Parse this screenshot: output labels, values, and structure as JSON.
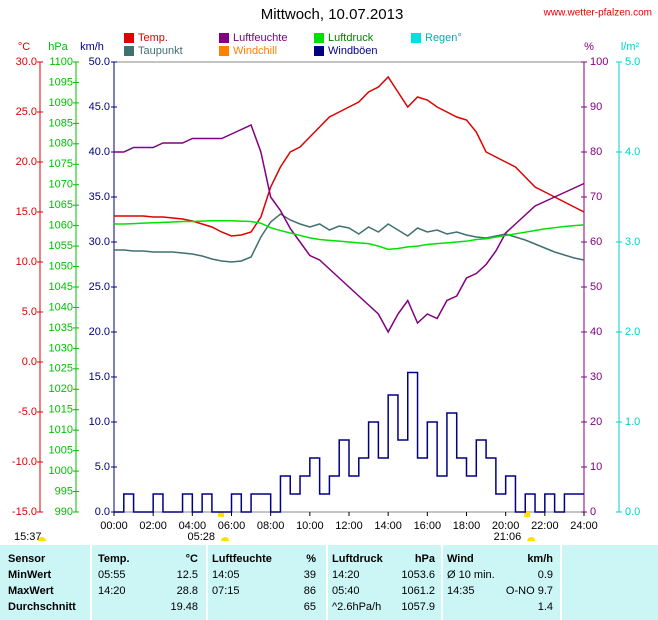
{
  "chart_data": {
    "type": "line",
    "title": "Mittwoch, 10.07.2013",
    "source": "www.wetter-pfalzen.com",
    "axes": {
      "temp": {
        "unit": "°C",
        "color": "#e00000",
        "lim": [
          -15,
          30
        ],
        "ticks": [
          {
            "value": 30,
            "label": "30.0"
          },
          {
            "value": 25,
            "label": "25.0"
          },
          {
            "value": 20,
            "label": "20.0"
          },
          {
            "value": 15,
            "label": "15.0"
          },
          {
            "value": 10,
            "label": "10.0"
          },
          {
            "value": 5,
            "label": "5.0"
          },
          {
            "value": 0,
            "label": "0.0"
          },
          {
            "value": -5,
            "label": "-5.0"
          },
          {
            "value": -10,
            "label": "-10.0"
          },
          {
            "value": -15,
            "label": "-15.0"
          }
        ]
      },
      "press": {
        "unit": "hPa",
        "color": "#00c000",
        "lim": [
          990,
          1100
        ],
        "ticks": [
          1100,
          1095,
          1090,
          1085,
          1080,
          1075,
          1070,
          1065,
          1060,
          1055,
          1050,
          1045,
          1040,
          1035,
          1030,
          1025,
          1020,
          1015,
          1010,
          1005,
          1000,
          995,
          990
        ]
      },
      "wind": {
        "unit": "km/h",
        "color": "#000080",
        "lim": [
          0,
          50
        ],
        "ticks": [
          {
            "value": 50,
            "label": "50.0"
          },
          {
            "value": 45,
            "label": "45.0"
          },
          {
            "value": 40,
            "label": "40.0"
          },
          {
            "value": 35,
            "label": "35.0"
          },
          {
            "value": 30,
            "label": "30.0"
          },
          {
            "value": 25,
            "label": "25.0"
          },
          {
            "value": 20,
            "label": "20.0"
          },
          {
            "value": 15,
            "label": "15.0"
          },
          {
            "value": 10,
            "label": "10.0"
          },
          {
            "value": 5,
            "label": "5.0"
          },
          {
            "value": 0,
            "label": "0.0"
          }
        ]
      },
      "hum": {
        "unit": "%",
        "color": "#800080",
        "lim": [
          0,
          100
        ],
        "ticks": [
          100,
          90,
          80,
          70,
          60,
          50,
          40,
          30,
          20,
          10,
          0
        ]
      },
      "rain": {
        "unit": "l/m²",
        "color": "#00d0d0",
        "lim": [
          0,
          5
        ],
        "ticks": [
          {
            "value": 5,
            "label": "5.0"
          },
          {
            "value": 4,
            "label": "4.0"
          },
          {
            "value": 3,
            "label": "3.0"
          },
          {
            "value": 2,
            "label": "2.0"
          },
          {
            "value": 1,
            "label": "1.0"
          },
          {
            "value": 0,
            "label": "0.0"
          }
        ]
      }
    },
    "xlim": [
      0,
      24
    ],
    "xticks": [
      {
        "value": 0,
        "label": "00:00"
      },
      {
        "value": 2,
        "label": "02:00"
      },
      {
        "value": 4,
        "label": "04:00"
      },
      {
        "value": 6,
        "label": "06:00"
      },
      {
        "value": 8,
        "label": "08:00"
      },
      {
        "value": 10,
        "label": "10:00"
      },
      {
        "value": 12,
        "label": "12:00"
      },
      {
        "value": 14,
        "label": "14:00"
      },
      {
        "value": 16,
        "label": "16:00"
      },
      {
        "value": 18,
        "label": "18:00"
      },
      {
        "value": 20,
        "label": "20:00"
      },
      {
        "value": 22,
        "label": "22:00"
      },
      {
        "value": 24,
        "label": "24:00"
      }
    ],
    "day_length": "15:37",
    "sun_markers": [
      {
        "value": 5.4667,
        "label": "05:28"
      },
      {
        "value": 21.1,
        "label": "21:06"
      }
    ],
    "x": [
      0,
      0.5,
      1,
      1.5,
      2,
      2.5,
      3,
      3.5,
      4,
      4.5,
      5,
      5.5,
      6,
      6.5,
      7,
      7.5,
      8,
      8.5,
      9,
      9.5,
      10,
      10.5,
      11,
      11.5,
      12,
      12.5,
      13,
      13.5,
      14,
      14.5,
      15,
      15.5,
      16,
      16.5,
      17,
      17.5,
      18,
      18.5,
      19,
      19.5,
      20,
      20.5,
      21,
      21.5,
      22,
      22.5,
      23,
      23.5,
      24
    ],
    "series": [
      {
        "name": "Temp.",
        "color": "#e00000",
        "axis": "temp",
        "values": [
          14.6,
          14.6,
          14.6,
          14.6,
          14.5,
          14.5,
          14.4,
          14.3,
          14.1,
          13.8,
          13.5,
          13.0,
          12.6,
          12.7,
          13.0,
          14.5,
          17.5,
          19.5,
          21.0,
          21.5,
          22.5,
          23.5,
          24.5,
          25.0,
          25.5,
          26.0,
          27.0,
          27.5,
          28.5,
          27.0,
          25.5,
          26.5,
          26.2,
          25.5,
          25.0,
          24.5,
          24.2,
          23.0,
          21.0,
          20.5,
          20.0,
          19.5,
          18.5,
          17.5,
          17.0,
          16.5,
          16.0,
          15.5,
          15.0
        ]
      },
      {
        "name": "Taupunkt",
        "color": "#407070",
        "axis": "temp",
        "values": [
          11.2,
          11.2,
          11.1,
          11.1,
          11.0,
          11.0,
          11.0,
          10.9,
          10.8,
          10.6,
          10.3,
          10.1,
          10.0,
          10.1,
          10.5,
          12.5,
          14.0,
          14.8,
          14.2,
          13.8,
          13.5,
          13.8,
          13.2,
          13.6,
          13.4,
          12.8,
          13.5,
          13.0,
          13.8,
          13.2,
          12.6,
          13.4,
          13.0,
          13.2,
          12.8,
          13.0,
          12.7,
          12.5,
          12.4,
          12.6,
          12.8,
          12.5,
          12.2,
          11.8,
          11.4,
          11.0,
          10.7,
          10.4,
          10.2
        ]
      },
      {
        "name": "Luftfeuchte",
        "color": "#800080",
        "axis": "hum",
        "values": [
          80,
          80,
          81,
          81,
          81,
          82,
          82,
          82,
          83,
          83,
          83,
          83,
          84,
          85,
          86,
          80,
          70,
          67,
          63,
          60,
          57,
          56,
          54,
          52,
          50,
          48,
          46,
          44,
          40,
          44,
          47,
          42,
          44,
          43,
          47,
          48,
          52,
          53,
          55,
          58,
          62,
          64,
          66,
          68,
          69,
          70,
          71,
          72,
          73
        ]
      },
      {
        "name": "Windchill",
        "color": "#ff8000",
        "axis": "temp"
      },
      {
        "name": "Luftdruck",
        "color": "#00e000",
        "axis": "press",
        "values": [
          1060.4,
          1060.4,
          1060.5,
          1060.6,
          1060.7,
          1060.8,
          1060.9,
          1061.0,
          1061.0,
          1061.1,
          1061.2,
          1061.2,
          1061.2,
          1061.1,
          1061.0,
          1060.6,
          1059.5,
          1058.8,
          1058.2,
          1057.6,
          1057.0,
          1056.6,
          1056.4,
          1056.2,
          1056.0,
          1055.8,
          1055.6,
          1055.0,
          1054.2,
          1054.4,
          1054.8,
          1055.0,
          1055.4,
          1055.6,
          1055.8,
          1056.0,
          1056.2,
          1056.6,
          1056.8,
          1057.2,
          1057.6,
          1058.0,
          1058.4,
          1058.8,
          1059.2,
          1059.5,
          1059.8,
          1060.0,
          1060.2
        ]
      },
      {
        "name": "Windböen",
        "color": "#000080",
        "axis": "wind",
        "step": true,
        "values": [
          0,
          2,
          0,
          0,
          2,
          0,
          0,
          2,
          0,
          2,
          0,
          0,
          2,
          0,
          2,
          2,
          0,
          4,
          2,
          4,
          6,
          2,
          4,
          8,
          4,
          6,
          10,
          6,
          13,
          8,
          15.5,
          6,
          10,
          4,
          11,
          6,
          4,
          8,
          6,
          2,
          4,
          0,
          2,
          0,
          2,
          0,
          2,
          2,
          2
        ]
      },
      {
        "name": "Regen°",
        "color": "#00e0e0",
        "axis": "rain"
      }
    ]
  },
  "table": {
    "header": [
      "Sensor",
      "Temp.",
      "°C",
      "Luftfeuchte",
      "%",
      "Luftdruck",
      "hPa",
      "Wind",
      "km/h"
    ],
    "rows": [
      [
        "MinWert",
        "05:55",
        "12.5",
        "14:05",
        "39",
        "14:20",
        "1053.6",
        "Ø 10 min.",
        "0.9"
      ],
      [
        "MaxWert",
        "14:20",
        "28.8",
        "07:15",
        "86",
        "05:40",
        "1061.2",
        "14:35",
        "O-NO 9.7"
      ],
      [
        "Durchschnitt",
        "",
        "19.48",
        "",
        "65",
        "^2.6hPa/h",
        "1057.9",
        "",
        "1.4"
      ]
    ]
  }
}
